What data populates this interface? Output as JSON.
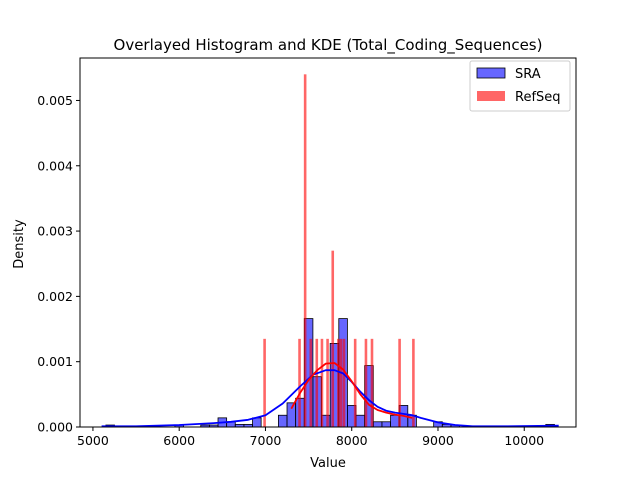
{
  "chart_data": {
    "type": "bar",
    "title": "Overlayed Histogram and KDE (Total_Coding_Sequences)",
    "xlabel": "Value",
    "ylabel": "Density",
    "xlim": [
      4850,
      10600
    ],
    "ylim": [
      0,
      0.00565
    ],
    "xticks": [
      5000,
      6000,
      7000,
      8000,
      9000,
      10000
    ],
    "yticks": [
      0.0,
      0.001,
      0.002,
      0.003,
      0.004,
      0.005
    ],
    "ytick_labels": [
      "0.000",
      "0.001",
      "0.002",
      "0.003",
      "0.004",
      "0.005"
    ],
    "legend_position": "upper right",
    "grid": false,
    "series": [
      {
        "name": "SRA",
        "color": "#0000ff",
        "kind": "histogram",
        "bin_width": 100,
        "bins": [
          {
            "x0": 5150,
            "x1": 5250,
            "density": 3e-05
          },
          {
            "x0": 5950,
            "x1": 6050,
            "density": 3e-05
          },
          {
            "x0": 6250,
            "x1": 6350,
            "density": 3e-05
          },
          {
            "x0": 6350,
            "x1": 6450,
            "density": 3e-05
          },
          {
            "x0": 6450,
            "x1": 6550,
            "density": 0.00014
          },
          {
            "x0": 6550,
            "x1": 6650,
            "density": 8e-05
          },
          {
            "x0": 6650,
            "x1": 6750,
            "density": 4e-05
          },
          {
            "x0": 6750,
            "x1": 6850,
            "density": 4e-05
          },
          {
            "x0": 6850,
            "x1": 6950,
            "density": 0.00014
          },
          {
            "x0": 7150,
            "x1": 7250,
            "density": 0.00018
          },
          {
            "x0": 7250,
            "x1": 7350,
            "density": 0.00037
          },
          {
            "x0": 7350,
            "x1": 7450,
            "density": 0.00044
          },
          {
            "x0": 7450,
            "x1": 7550,
            "density": 0.00166
          },
          {
            "x0": 7550,
            "x1": 7650,
            "density": 0.00077
          },
          {
            "x0": 7650,
            "x1": 7750,
            "density": 0.00018
          },
          {
            "x0": 7750,
            "x1": 7850,
            "density": 0.00128
          },
          {
            "x0": 7850,
            "x1": 7950,
            "density": 0.00166
          },
          {
            "x0": 7950,
            "x1": 8050,
            "density": 0.00033
          },
          {
            "x0": 8050,
            "x1": 8150,
            "density": 0.00018
          },
          {
            "x0": 8150,
            "x1": 8250,
            "density": 0.00094
          },
          {
            "x0": 8250,
            "x1": 8350,
            "density": 8e-05
          },
          {
            "x0": 8350,
            "x1": 8450,
            "density": 8e-05
          },
          {
            "x0": 8450,
            "x1": 8550,
            "density": 0.00018
          },
          {
            "x0": 8550,
            "x1": 8650,
            "density": 0.00033
          },
          {
            "x0": 8650,
            "x1": 8750,
            "density": 0.00018
          },
          {
            "x0": 8950,
            "x1": 9050,
            "density": 8e-05
          },
          {
            "x0": 9050,
            "x1": 9150,
            "density": 4e-05
          },
          {
            "x0": 9150,
            "x1": 9250,
            "density": 3e-05
          },
          {
            "x0": 10250,
            "x1": 10350,
            "density": 4e-05
          }
        ],
        "kde": {
          "x": [
            5100,
            5500,
            6000,
            6400,
            6600,
            6800,
            7000,
            7200,
            7400,
            7550,
            7700,
            7800,
            7900,
            8000,
            8100,
            8200,
            8300,
            8400,
            8500,
            8600,
            8700,
            8800,
            9000,
            9200,
            9400,
            9800,
            10400
          ],
          "y": [
            1e-05,
            1e-05,
            3e-05,
            6e-05,
            8e-05,
            0.00011,
            0.00018,
            0.00036,
            0.00062,
            0.0008,
            0.00087,
            0.00087,
            0.00082,
            0.00069,
            0.00054,
            0.00041,
            0.00031,
            0.00025,
            0.00022,
            0.0002,
            0.00018,
            0.00014,
            7e-05,
            3e-05,
            1e-05,
            1e-05,
            2e-05
          ]
        }
      },
      {
        "name": "RefSeq",
        "color": "#ff0000",
        "kind": "histogram",
        "bin_width": 30,
        "bins": [
          {
            "x0": 6975,
            "x1": 7005,
            "density": 0.00135
          },
          {
            "x0": 7380,
            "x1": 7410,
            "density": 0.00135
          },
          {
            "x0": 7445,
            "x1": 7475,
            "density": 0.0054
          },
          {
            "x0": 7510,
            "x1": 7540,
            "density": 0.00135
          },
          {
            "x0": 7580,
            "x1": 7610,
            "density": 0.00135
          },
          {
            "x0": 7640,
            "x1": 7670,
            "density": 0.00135
          },
          {
            "x0": 7705,
            "x1": 7735,
            "density": 0.00135
          },
          {
            "x0": 7765,
            "x1": 7795,
            "density": 0.0027
          },
          {
            "x0": 7830,
            "x1": 7860,
            "density": 0.00135
          },
          {
            "x0": 7860,
            "x1": 7890,
            "density": 0.00135
          },
          {
            "x0": 7895,
            "x1": 7925,
            "density": 0.00135
          },
          {
            "x0": 8025,
            "x1": 8055,
            "density": 0.00135
          },
          {
            "x0": 8150,
            "x1": 8180,
            "density": 0.00135
          },
          {
            "x0": 8220,
            "x1": 8250,
            "density": 0.00135
          },
          {
            "x0": 8540,
            "x1": 8570,
            "density": 0.00135
          },
          {
            "x0": 8700,
            "x1": 8730,
            "density": 0.00135
          }
        ],
        "kde": {
          "x": [
            7300,
            7400,
            7500,
            7600,
            7700,
            7800,
            7900,
            8000,
            8100,
            8200,
            8300,
            8400,
            8500,
            8600,
            8700
          ],
          "y": [
            0.00028,
            0.00052,
            0.00072,
            0.00087,
            0.00097,
            0.00098,
            0.00088,
            0.0007,
            0.0005,
            0.00034,
            0.00026,
            0.00022,
            0.00019,
            0.00017,
            0.00014
          ]
        }
      }
    ]
  }
}
